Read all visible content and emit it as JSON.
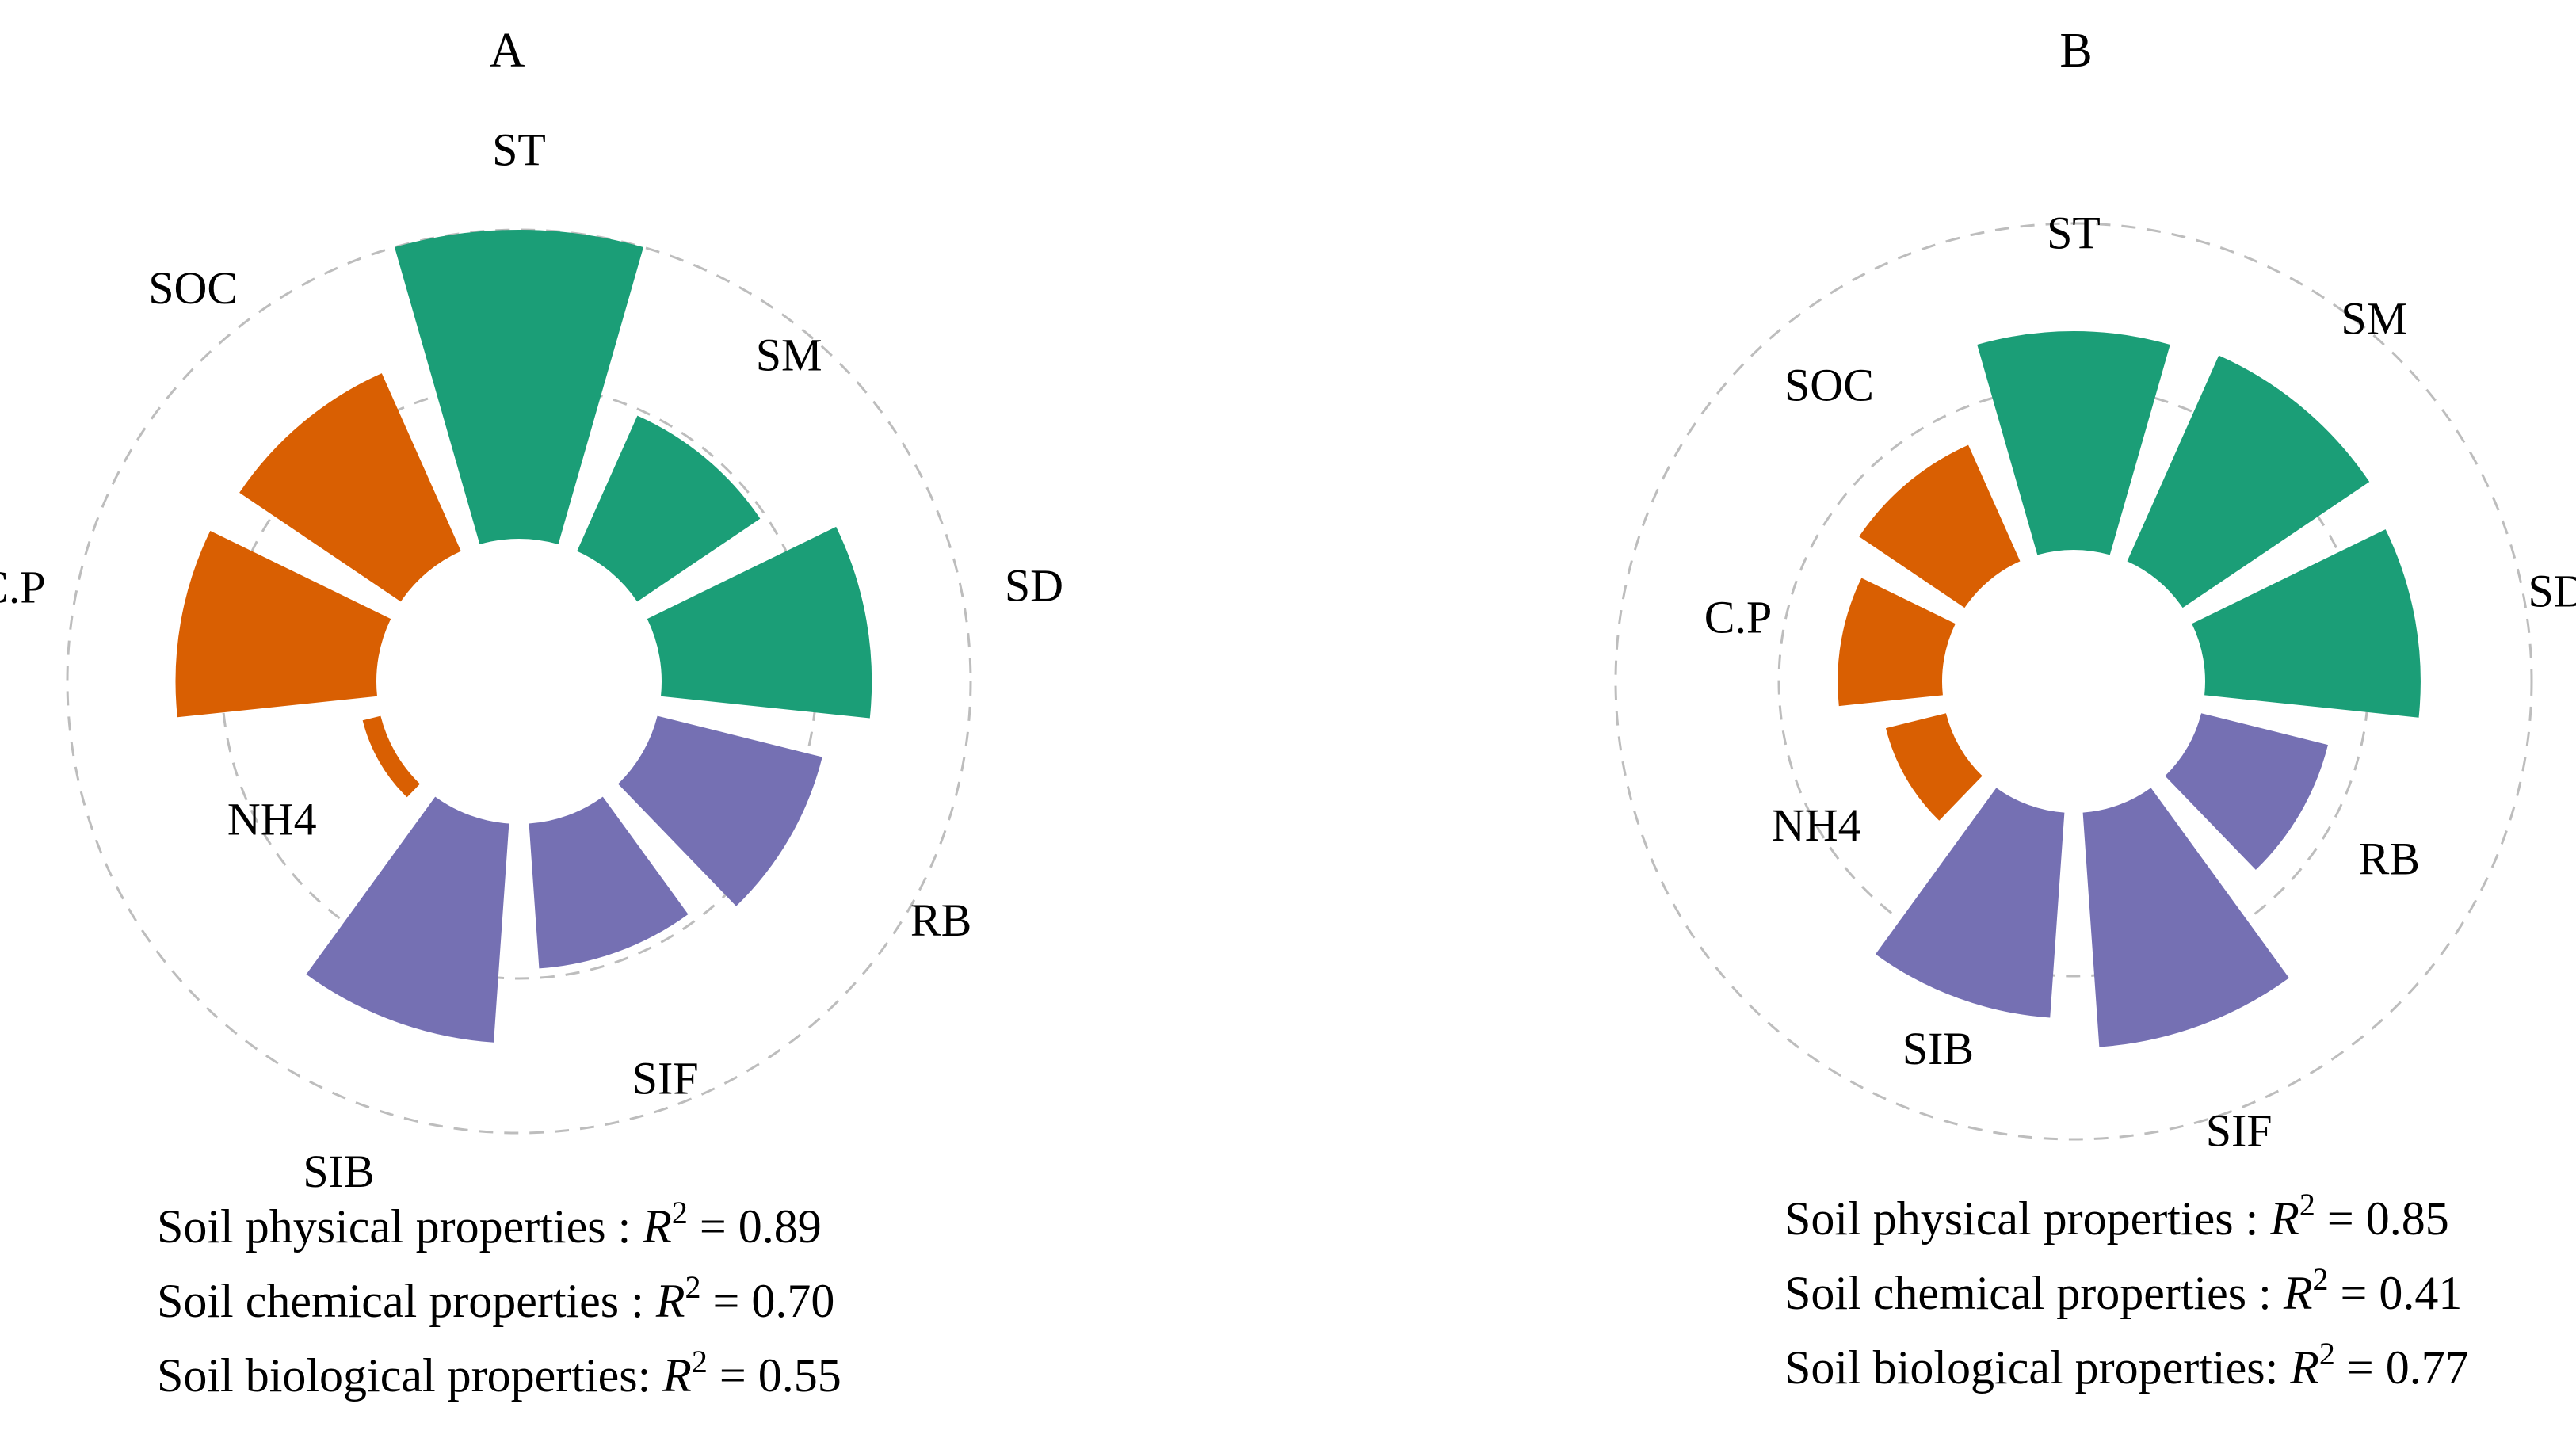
{
  "chart_data": [
    {
      "type": "polar-bar",
      "title": "A",
      "categories": [
        "ST",
        "SM",
        "SD",
        "RB",
        "SIF",
        "SIB",
        "NH4",
        "C.P",
        "SOC"
      ],
      "groups": [
        "physical",
        "physical",
        "physical",
        "biological",
        "biological",
        "biological",
        "chemical",
        "chemical",
        "chemical"
      ],
      "values": [
        100,
        48,
        68,
        55,
        47,
        71,
        6,
        65,
        63
      ],
      "r_axis": {
        "max": 100,
        "gridlines": [
          50,
          100
        ],
        "grid_style": "dashed"
      },
      "annotations": [
        {
          "label": "Soil physical properties  : ",
          "stat": "R",
          "sup": "2",
          "eq": " = 0.89"
        },
        {
          "label": "Soil chemical properties : ",
          "stat": "R",
          "sup": "2",
          "eq": " = 0.70"
        },
        {
          "label": "Soil biological properties: ",
          "stat": "R",
          "sup": "2",
          "eq": " = 0.55"
        }
      ]
    },
    {
      "type": "polar-bar",
      "title": "B",
      "categories": [
        "ST",
        "SM",
        "SD",
        "RB",
        "SIF",
        "SIB",
        "NH4",
        "C.P",
        "SOC"
      ],
      "groups": [
        "physical",
        "physical",
        "physical",
        "biological",
        "biological",
        "biological",
        "chemical",
        "chemical",
        "chemical"
      ],
      "values": [
        67,
        69,
        66,
        40,
        72,
        63,
        19,
        32,
        39
      ],
      "r_axis": {
        "max": 100,
        "gridlines": [
          50,
          100
        ],
        "grid_style": "dashed"
      },
      "annotations": [
        {
          "label": "Soil physical properties  : ",
          "stat": "R",
          "sup": "2",
          "eq": " = 0.85"
        },
        {
          "label": "Soil chemical properties : ",
          "stat": "R",
          "sup": "2",
          "eq": " = 0.41"
        },
        {
          "label": "Soil biological properties: ",
          "stat": "R",
          "sup": "2",
          "eq": " = 0.77"
        }
      ]
    }
  ],
  "colors": {
    "physical": "#1b9e77",
    "chemical": "#d95f02",
    "biological": "#7570b3",
    "grid": "#bdbdbd"
  }
}
